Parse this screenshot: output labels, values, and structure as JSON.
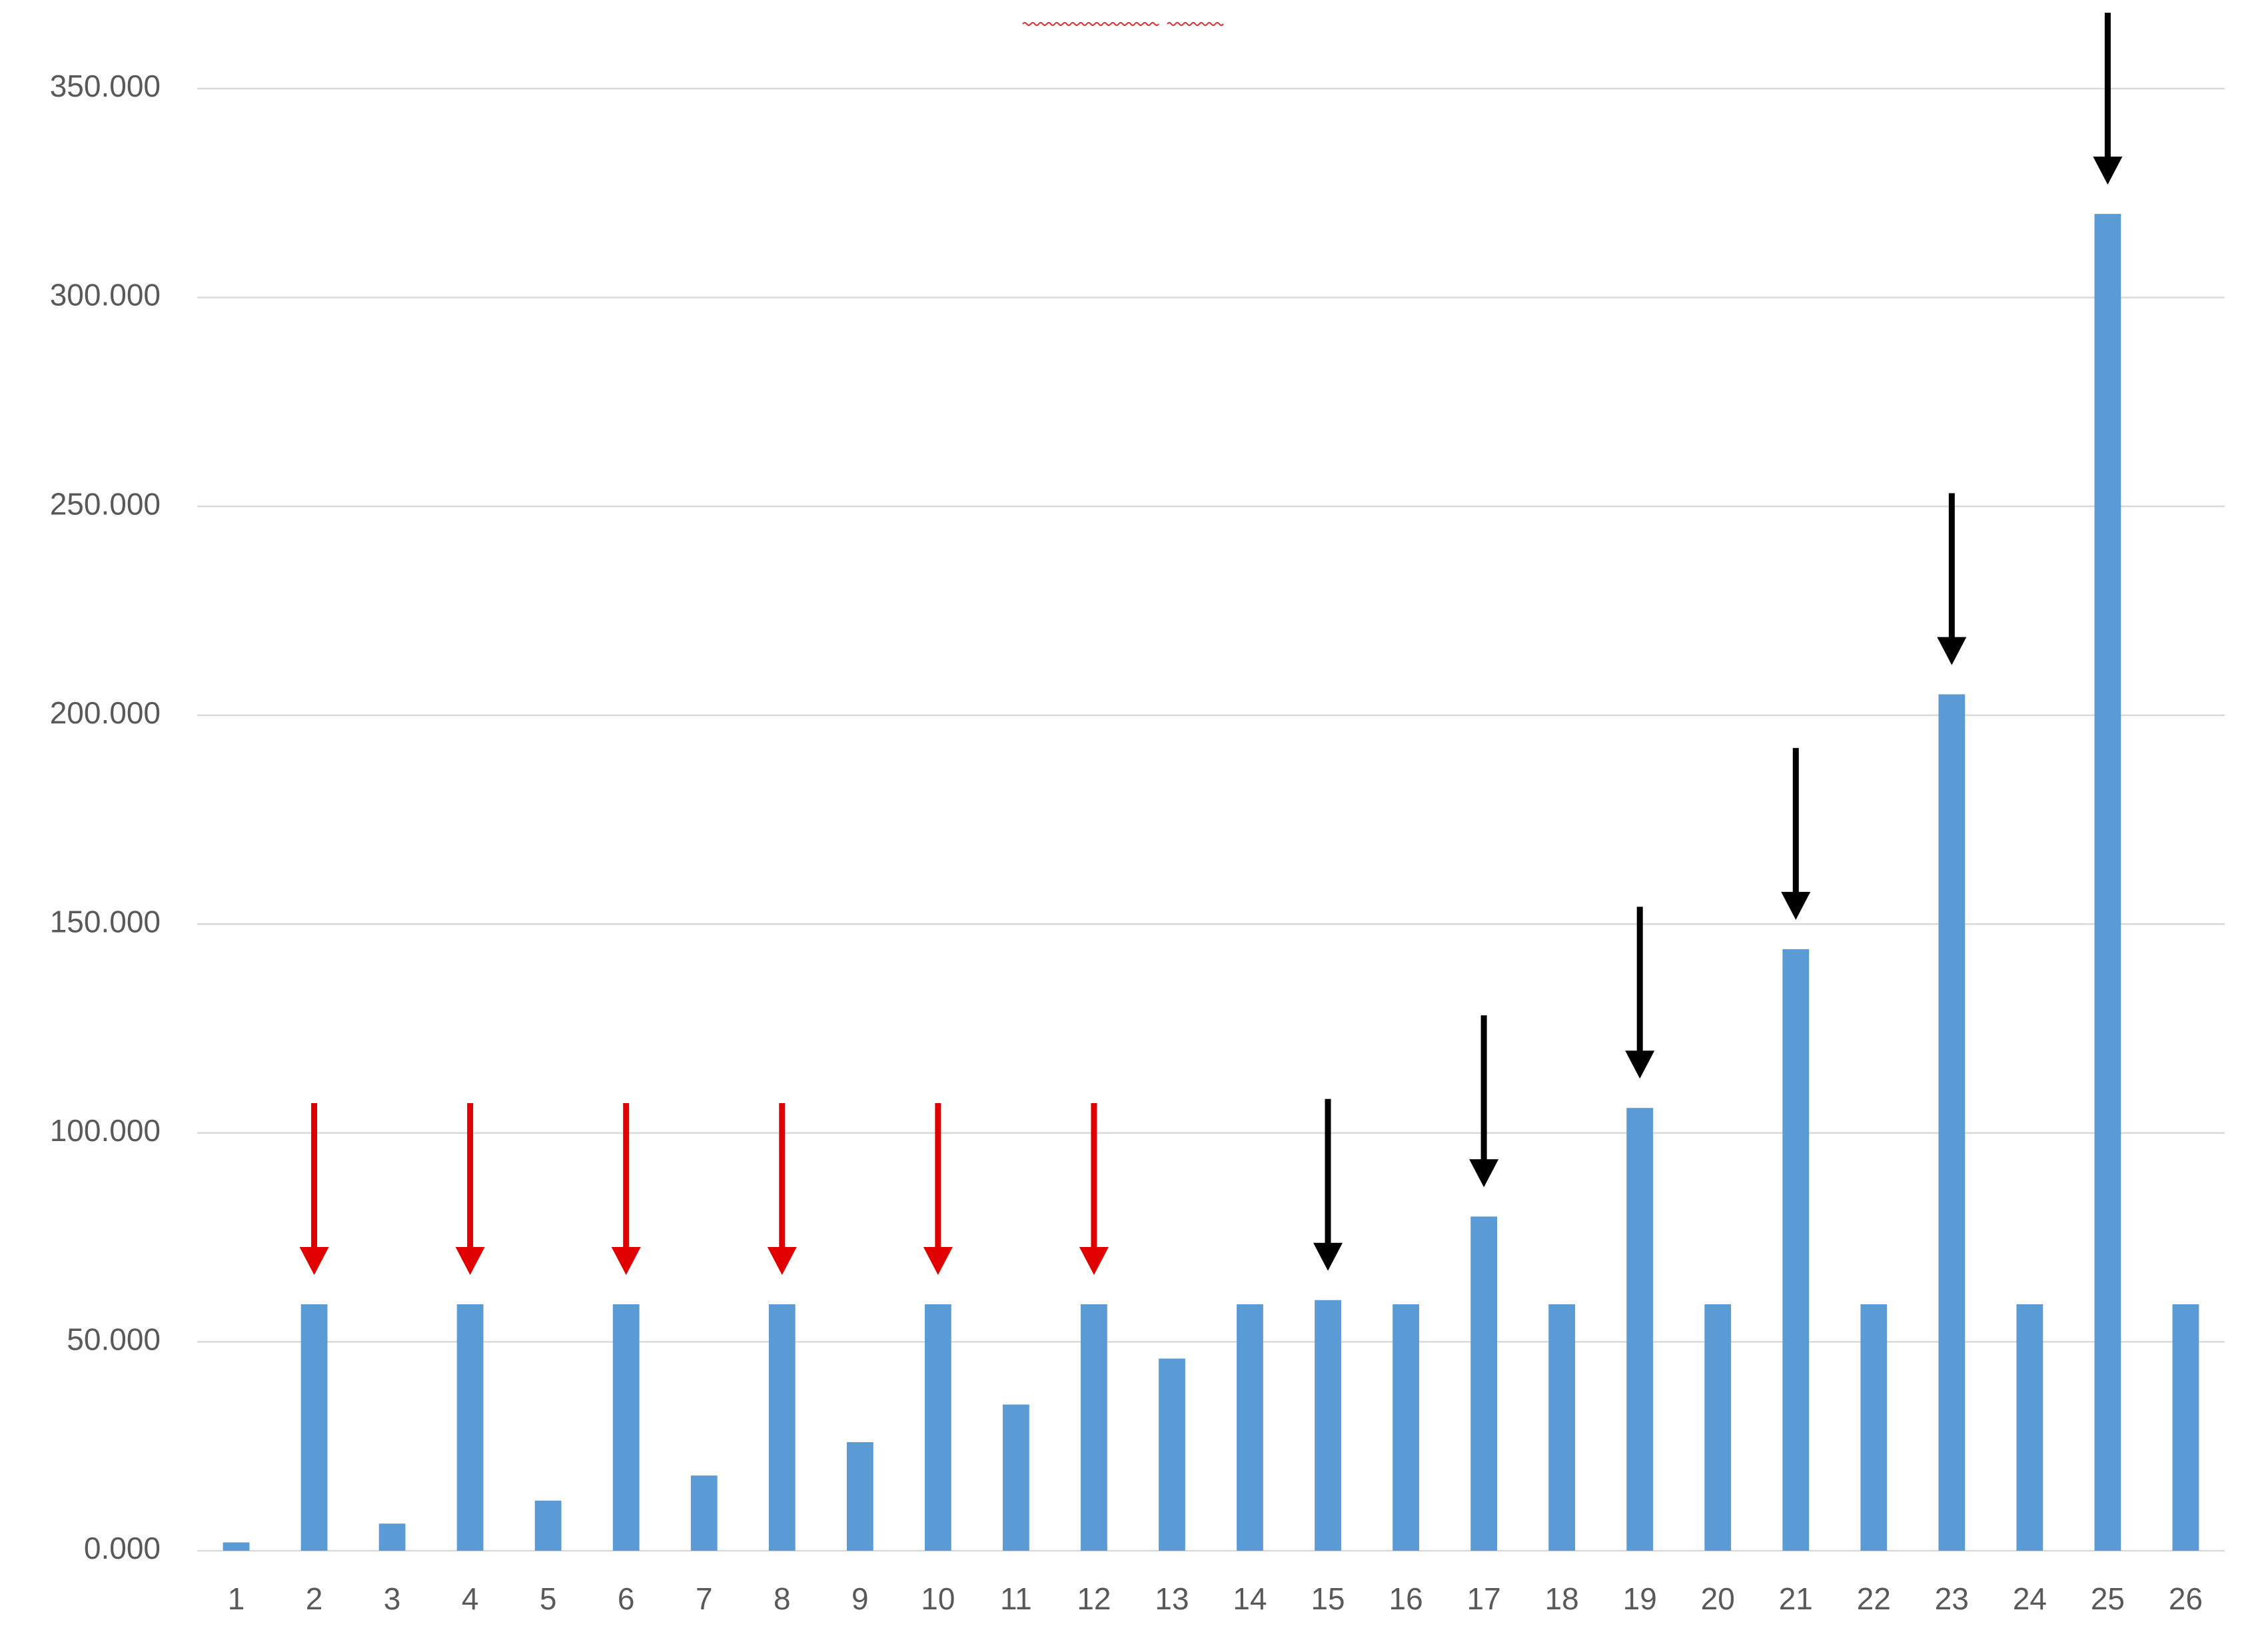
{
  "chart_data": {
    "type": "bar",
    "categories": [
      "1",
      "2",
      "3",
      "4",
      "5",
      "6",
      "7",
      "8",
      "9",
      "10",
      "11",
      "12",
      "13",
      "14",
      "15",
      "16",
      "17",
      "18",
      "19",
      "20",
      "21",
      "22",
      "23",
      "24",
      "25",
      "26"
    ],
    "values": [
      2,
      59,
      6.5,
      59,
      12,
      59,
      18,
      59,
      26,
      59,
      35,
      59,
      46,
      59,
      60,
      59,
      80,
      59,
      106,
      59,
      144,
      59,
      205,
      59,
      320,
      59
    ],
    "color": "#5b9bd5",
    "ylim": [
      0,
      350
    ],
    "yticks": [
      {
        "value": 0,
        "label": "0.000"
      },
      {
        "value": 50,
        "label": "50.000"
      },
      {
        "value": 100,
        "label": "100.000"
      },
      {
        "value": 150,
        "label": "150.000"
      },
      {
        "value": 200,
        "label": "200.000"
      },
      {
        "value": 250,
        "label": "250.000"
      },
      {
        "value": 300,
        "label": "300.000"
      },
      {
        "value": 350,
        "label": "350.000"
      }
    ],
    "grid": true
  }
}
